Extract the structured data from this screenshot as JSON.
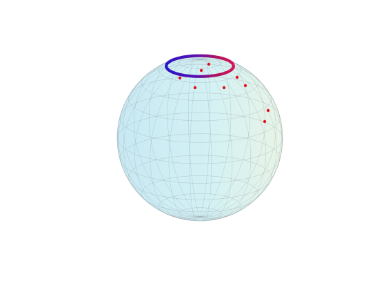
{
  "figure": {
    "type": "bloch-sphere",
    "colors": {
      "background": "#ffffff",
      "sphere_left": "#c8e9f3",
      "sphere_mid": "#d3f1f4",
      "sphere_right": "#e8f4e6",
      "grid_line": "#8f9aa2",
      "trajectory_start": "#2a14c8",
      "trajectory_end": "#d4145a",
      "points": "#e0141c"
    },
    "trajectory": {
      "polar_angle_deg": 24,
      "description_count": 1
    },
    "scattered_points_count": 9
  }
}
